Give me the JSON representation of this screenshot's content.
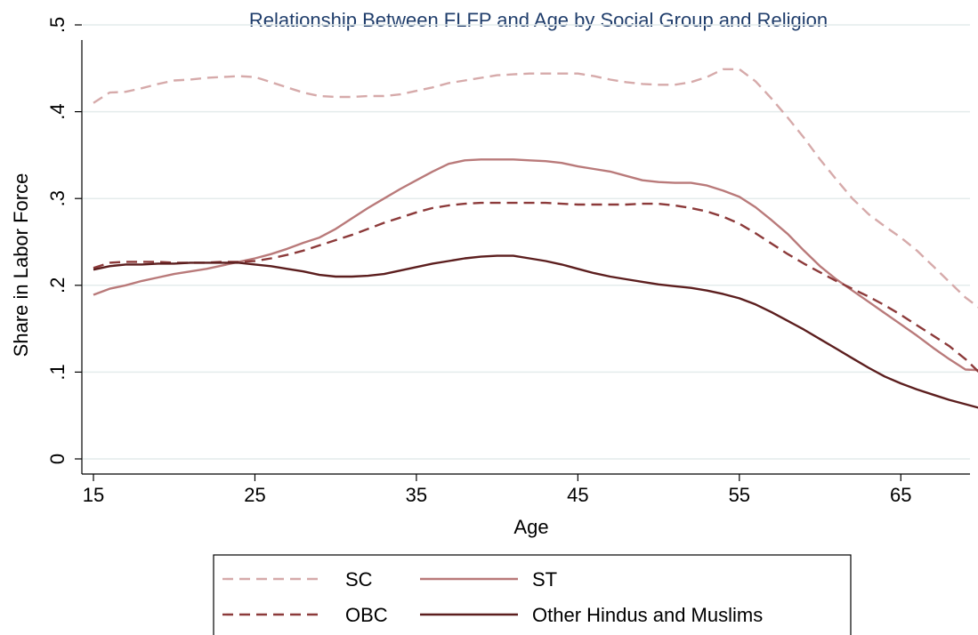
{
  "chart_data": {
    "type": "line",
    "title": "Relationship Between FLFP and Age by Social Group and Religion",
    "xlabel": "Age",
    "ylabel": "Share in Labor Force",
    "xlim": [
      15,
      70
    ],
    "ylim": [
      0,
      0.5
    ],
    "xticks": [
      15,
      25,
      35,
      45,
      55,
      65
    ],
    "xtick_labels": [
      "15",
      "25",
      "35",
      "45",
      "55",
      "65"
    ],
    "yticks": [
      0,
      0.1,
      0.2,
      0.3,
      0.4,
      0.5
    ],
    "ytick_labels": [
      "0",
      ".1",
      ".2",
      ".3",
      ".4",
      ".5"
    ],
    "grid": true,
    "legend_position": "bottom",
    "colors": {
      "title": "#1f3d6b",
      "grid": "#e4ecec",
      "axis": "#000000",
      "sc": "#d6aaaa",
      "st": "#b97a7a",
      "obc": "#8c3a3a",
      "other": "#5c1e1e"
    },
    "series": [
      {
        "name": "SC",
        "dash": "dashed",
        "color": "#d6aaaa",
        "x": [
          15,
          16,
          17,
          18,
          19,
          20,
          21,
          22,
          23,
          24,
          25,
          26,
          27,
          28,
          29,
          30,
          31,
          32,
          33,
          34,
          35,
          36,
          37,
          38,
          39,
          40,
          41,
          42,
          43,
          44,
          45,
          46,
          47,
          48,
          49,
          50,
          51,
          52,
          53,
          54,
          55,
          56,
          57,
          58,
          59,
          60,
          61,
          62,
          63,
          64,
          65,
          66,
          67,
          68,
          69,
          70
        ],
        "y": [
          0.41,
          0.422,
          0.423,
          0.427,
          0.432,
          0.436,
          0.437,
          0.439,
          0.44,
          0.441,
          0.44,
          0.434,
          0.428,
          0.422,
          0.418,
          0.417,
          0.417,
          0.418,
          0.418,
          0.42,
          0.424,
          0.428,
          0.433,
          0.436,
          0.439,
          0.442,
          0.443,
          0.444,
          0.444,
          0.444,
          0.444,
          0.441,
          0.437,
          0.434,
          0.432,
          0.431,
          0.431,
          0.434,
          0.44,
          0.449,
          0.449,
          0.435,
          0.415,
          0.393,
          0.37,
          0.345,
          0.322,
          0.3,
          0.282,
          0.268,
          0.255,
          0.24,
          0.222,
          0.204,
          0.186,
          0.172
        ]
      },
      {
        "name": "ST",
        "dash": "solid",
        "color": "#b97a7a",
        "x": [
          15,
          16,
          17,
          18,
          19,
          20,
          21,
          22,
          23,
          24,
          25,
          26,
          27,
          28,
          29,
          30,
          31,
          32,
          33,
          34,
          35,
          36,
          37,
          38,
          39,
          40,
          41,
          42,
          43,
          44,
          45,
          46,
          47,
          48,
          49,
          50,
          51,
          52,
          53,
          54,
          55,
          56,
          57,
          58,
          59,
          60,
          61,
          62,
          63,
          64,
          65,
          66,
          67,
          68,
          69,
          70
        ],
        "y": [
          0.189,
          0.196,
          0.2,
          0.205,
          0.209,
          0.213,
          0.216,
          0.219,
          0.223,
          0.227,
          0.231,
          0.236,
          0.242,
          0.249,
          0.255,
          0.265,
          0.277,
          0.289,
          0.3,
          0.311,
          0.321,
          0.331,
          0.34,
          0.344,
          0.345,
          0.345,
          0.345,
          0.344,
          0.343,
          0.341,
          0.337,
          0.334,
          0.331,
          0.326,
          0.321,
          0.319,
          0.318,
          0.318,
          0.315,
          0.309,
          0.302,
          0.29,
          0.275,
          0.259,
          0.24,
          0.222,
          0.207,
          0.194,
          0.181,
          0.168,
          0.155,
          0.142,
          0.128,
          0.115,
          0.103,
          0.102
        ]
      },
      {
        "name": "OBC",
        "dash": "dashed",
        "color": "#8c3a3a",
        "x": [
          15,
          16,
          17,
          18,
          19,
          20,
          21,
          22,
          23,
          24,
          25,
          26,
          27,
          28,
          29,
          30,
          31,
          32,
          33,
          34,
          35,
          36,
          37,
          38,
          39,
          40,
          41,
          42,
          43,
          44,
          45,
          46,
          47,
          48,
          49,
          50,
          51,
          52,
          53,
          54,
          55,
          56,
          57,
          58,
          59,
          60,
          61,
          62,
          63,
          64,
          65,
          66,
          67,
          68,
          69,
          70
        ],
        "y": [
          0.22,
          0.226,
          0.227,
          0.227,
          0.227,
          0.226,
          0.226,
          0.226,
          0.227,
          0.227,
          0.228,
          0.231,
          0.235,
          0.24,
          0.246,
          0.252,
          0.258,
          0.265,
          0.272,
          0.278,
          0.284,
          0.289,
          0.292,
          0.294,
          0.295,
          0.295,
          0.295,
          0.295,
          0.295,
          0.294,
          0.293,
          0.293,
          0.293,
          0.293,
          0.294,
          0.294,
          0.292,
          0.289,
          0.285,
          0.279,
          0.271,
          0.26,
          0.248,
          0.236,
          0.225,
          0.215,
          0.205,
          0.196,
          0.187,
          0.177,
          0.166,
          0.154,
          0.142,
          0.13,
          0.115,
          0.097
        ]
      },
      {
        "name": "Other Hindus and Muslims",
        "dash": "solid",
        "color": "#5c1e1e",
        "x": [
          15,
          16,
          17,
          18,
          19,
          20,
          21,
          22,
          23,
          24,
          25,
          26,
          27,
          28,
          29,
          30,
          31,
          32,
          33,
          34,
          35,
          36,
          37,
          38,
          39,
          40,
          41,
          42,
          43,
          44,
          45,
          46,
          47,
          48,
          49,
          50,
          51,
          52,
          53,
          54,
          55,
          56,
          57,
          58,
          59,
          60,
          61,
          62,
          63,
          64,
          65,
          66,
          67,
          68,
          69,
          70
        ],
        "y": [
          0.218,
          0.222,
          0.224,
          0.224,
          0.225,
          0.225,
          0.226,
          0.226,
          0.226,
          0.226,
          0.224,
          0.222,
          0.219,
          0.216,
          0.212,
          0.21,
          0.21,
          0.211,
          0.213,
          0.217,
          0.221,
          0.225,
          0.228,
          0.231,
          0.233,
          0.234,
          0.234,
          0.231,
          0.228,
          0.224,
          0.219,
          0.214,
          0.21,
          0.207,
          0.204,
          0.201,
          0.199,
          0.197,
          0.194,
          0.19,
          0.185,
          0.178,
          0.169,
          0.159,
          0.149,
          0.138,
          0.127,
          0.116,
          0.105,
          0.095,
          0.087,
          0.08,
          0.074,
          0.068,
          0.063,
          0.058
        ]
      }
    ]
  }
}
